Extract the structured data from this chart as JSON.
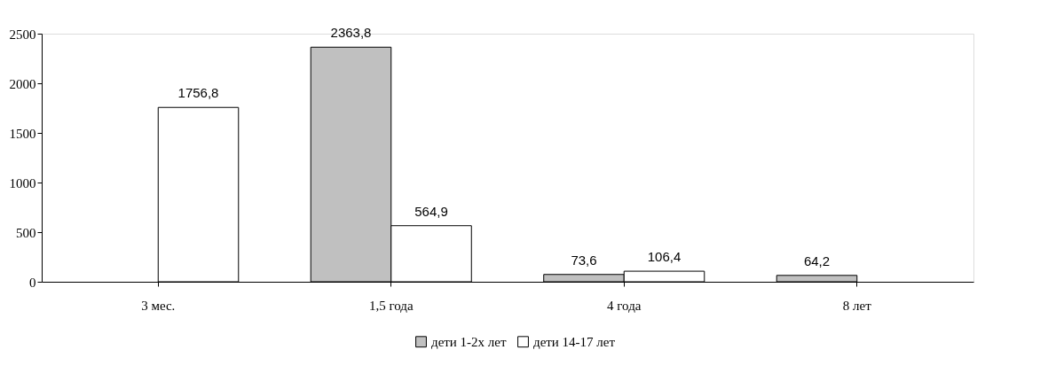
{
  "chart_data": {
    "type": "bar",
    "categories": [
      "3 мес.",
      "1,5 года",
      "4 года",
      "8 лет"
    ],
    "series": [
      {
        "name": "дети 1-2х лет",
        "color": "#c0c0c0",
        "values": [
          null,
          2363.8,
          73.6,
          64.2
        ],
        "value_labels": [
          null,
          "2363,8",
          "73,6",
          "64,2"
        ]
      },
      {
        "name": "дети 14-17 лет",
        "color": "#ffffff",
        "values": [
          1756.8,
          564.9,
          106.4,
          null
        ],
        "value_labels": [
          "1756,8",
          "564,9",
          "106,4",
          null
        ]
      }
    ],
    "ylim": [
      0,
      2500
    ],
    "yticks": [
      0,
      500,
      1000,
      1500,
      2000,
      2500
    ],
    "grid": false,
    "legend": "bottom"
  }
}
